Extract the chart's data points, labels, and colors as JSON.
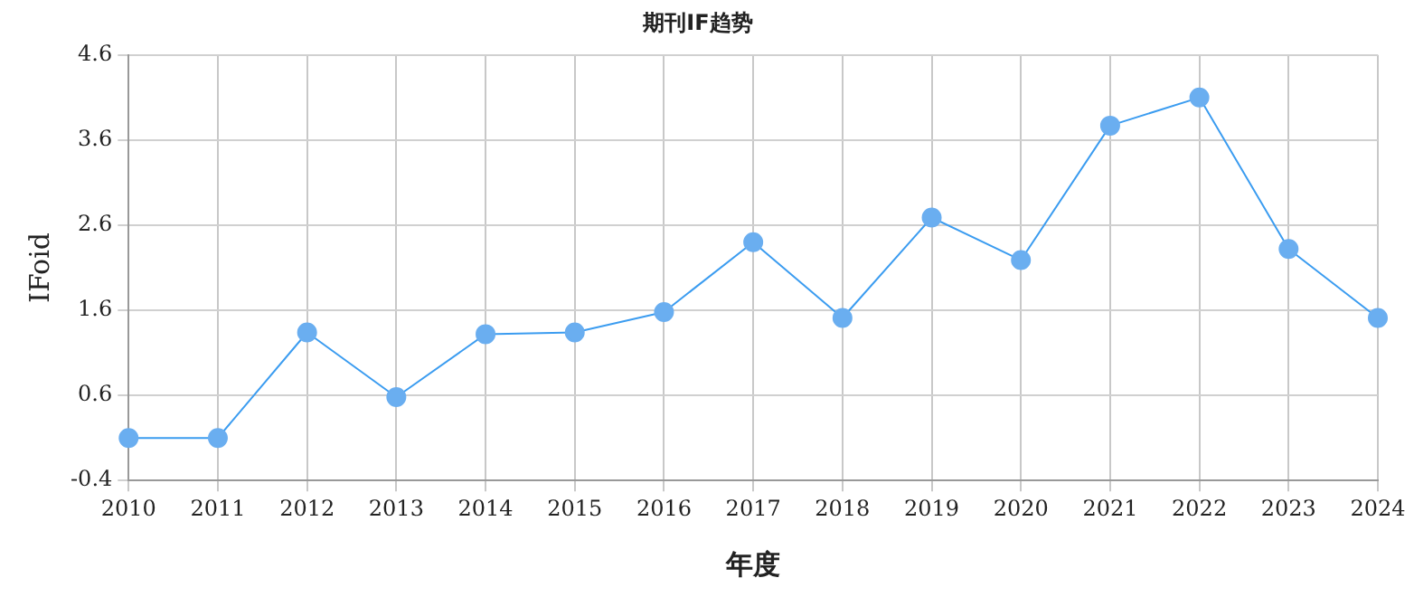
{
  "chart_data": {
    "type": "line",
    "title": "期刊IF趋势",
    "xlabel": "年度",
    "ylabel": "IFoid",
    "categories": [
      "2010",
      "2011",
      "2012",
      "2013",
      "2014",
      "2015",
      "2016",
      "2017",
      "2018",
      "2019",
      "2020",
      "2021",
      "2022",
      "2023",
      "2024"
    ],
    "series": [
      {
        "color": "#3b9cf0",
        "values": [
          0.1,
          0.1,
          1.34,
          0.58,
          1.32,
          1.34,
          1.58,
          2.4,
          1.51,
          2.69,
          2.19,
          3.77,
          4.1,
          2.32,
          1.51
        ]
      }
    ],
    "ylim": [
      -0.4,
      4.6
    ],
    "yticks": [
      -0.4,
      0.6,
      1.6,
      2.6,
      3.6,
      4.6
    ],
    "grid": true,
    "legend": false,
    "marker": "circle",
    "line_style": "solid"
  }
}
